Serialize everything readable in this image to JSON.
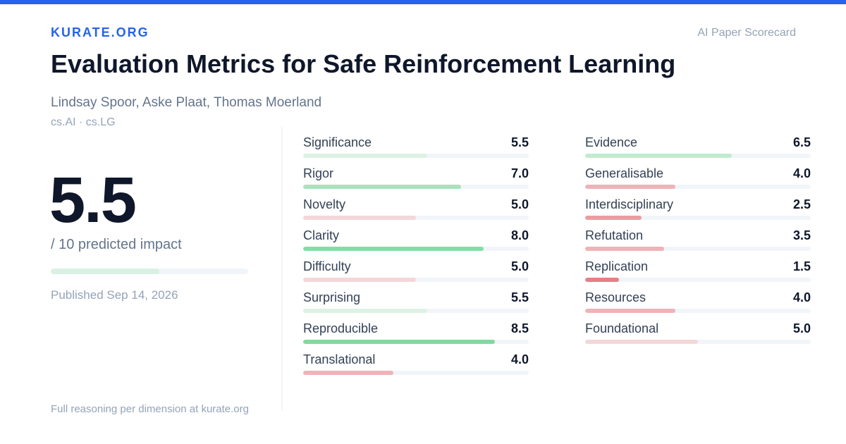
{
  "header": {
    "brand": "KURATE.ORG",
    "kicker": "AI Paper Scorecard",
    "accent_color": "#2563eb"
  },
  "paper": {
    "title": "Evaluation Metrics for Safe Reinforcement Learning",
    "authors": "Lindsay Spoor, Aske Plaat, Thomas Moerland",
    "categories": "cs.AI · cs.LG"
  },
  "summary": {
    "score": "5.5",
    "score_caption": "/ 10 predicted impact",
    "score_fraction": 0.55,
    "published": "Published Sep 14, 2026"
  },
  "footer": {
    "text": "Full reasoning per dimension at kurate.org"
  },
  "metrics_left": [
    {
      "label": "Significance",
      "value": "5.5",
      "score": 5.5,
      "color": "#dcf2e4"
    },
    {
      "label": "Rigor",
      "value": "7.0",
      "score": 7.0,
      "color": "#a7e3bd"
    },
    {
      "label": "Novelty",
      "value": "5.0",
      "score": 5.0,
      "color": "#f4d7d9"
    },
    {
      "label": "Clarity",
      "value": "8.0",
      "score": 8.0,
      "color": "#86dca5"
    },
    {
      "label": "Difficulty",
      "value": "5.0",
      "score": 5.0,
      "color": "#f4d7d9"
    },
    {
      "label": "Surprising",
      "value": "5.5",
      "score": 5.5,
      "color": "#dcf2e4"
    },
    {
      "label": "Reproducible",
      "value": "8.5",
      "score": 8.5,
      "color": "#80da9f"
    },
    {
      "label": "Translational",
      "value": "4.0",
      "score": 4.0,
      "color": "#efb3b7"
    }
  ],
  "metrics_right": [
    {
      "label": "Evidence",
      "value": "6.5",
      "score": 6.5,
      "color": "#c2ead0"
    },
    {
      "label": "Generalisable",
      "value": "4.0",
      "score": 4.0,
      "color": "#efb3b7"
    },
    {
      "label": "Interdisciplinary",
      "value": "2.5",
      "score": 2.5,
      "color": "#ec9ca1"
    },
    {
      "label": "Refutation",
      "value": "3.5",
      "score": 3.5,
      "color": "#efb3b7"
    },
    {
      "label": "Replication",
      "value": "1.5",
      "score": 1.5,
      "color": "#e77f86"
    },
    {
      "label": "Resources",
      "value": "4.0",
      "score": 4.0,
      "color": "#efb3b7"
    },
    {
      "label": "Foundational",
      "value": "5.0",
      "score": 5.0,
      "color": "#f4d7d9"
    }
  ]
}
